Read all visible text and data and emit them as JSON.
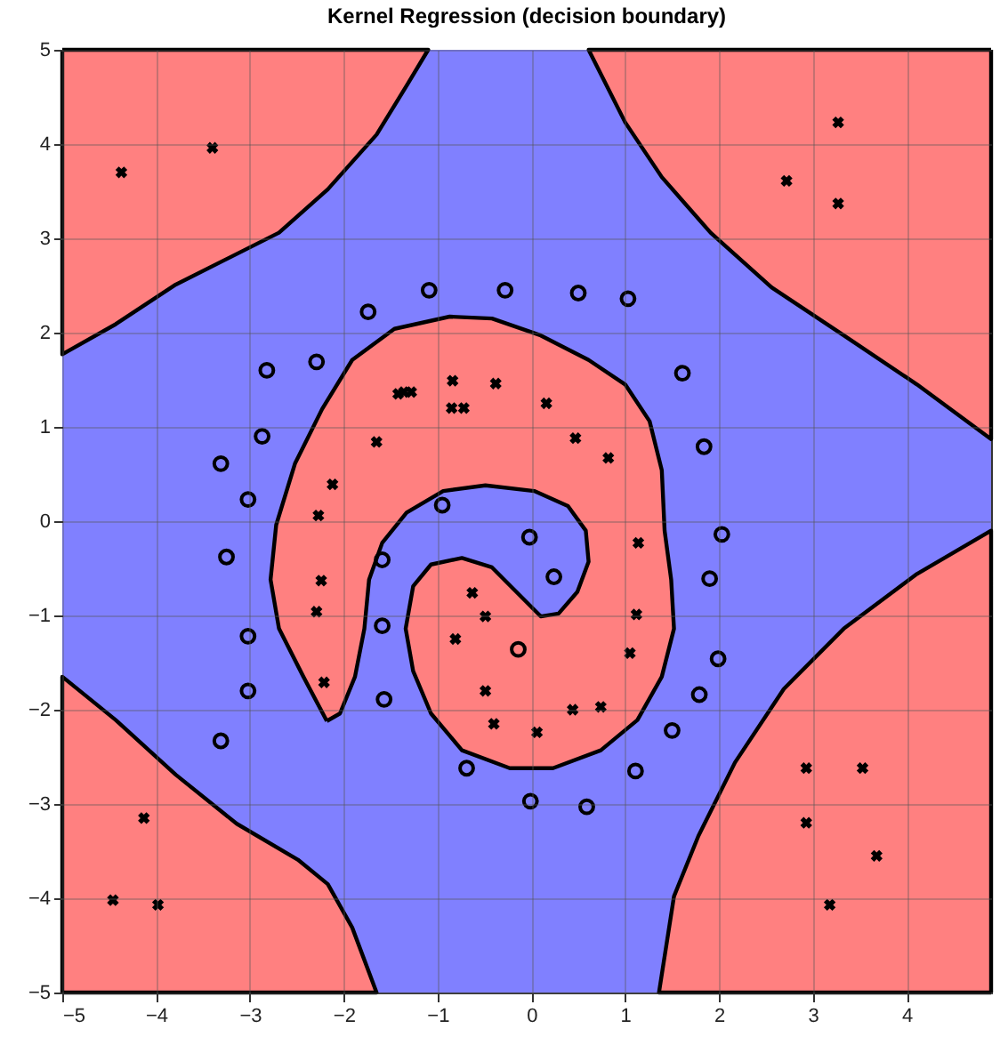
{
  "chart_data": {
    "type": "scatter",
    "title": "Kernel Regression (decision boundary)",
    "xlim": [
      -5,
      4.9
    ],
    "ylim": [
      -5,
      5
    ],
    "xticks": [
      -5,
      -4,
      -3,
      -2,
      -1,
      0,
      1,
      2,
      3,
      4
    ],
    "yticks": [
      -5,
      -4,
      -3,
      -2,
      -1,
      0,
      1,
      2,
      3,
      4,
      5
    ],
    "grid": true,
    "bands": [
      {
        "axis": "x",
        "from": -5,
        "to": 4.9,
        "color": "#8080ff"
      }
    ],
    "series": [
      {
        "type": "area",
        "color": "#ff8080",
        "x": [
          -5,
          -5,
          -4.43,
          -3.79,
          -3.27,
          -2.69,
          -2.17,
          -1.65,
          -1.33,
          -1.1
        ],
        "values": [
          5,
          1.77,
          2.09,
          2.51,
          2.77,
          3.06,
          3.52,
          4.1,
          4.62,
          5
        ]
      },
      {
        "type": "area",
        "color": "#ff8080",
        "x": [
          4.9,
          0.61,
          1.0,
          1.39,
          1.91,
          2.56,
          3.33,
          4.11,
          4.9
        ],
        "values": [
          5,
          5,
          4.23,
          3.65,
          3.06,
          2.48,
          1.97,
          1.45,
          0.87
        ]
      },
      {
        "type": "area",
        "color": "#ff8080",
        "x": [
          4.9,
          4.9,
          4.11,
          3.33,
          2.69,
          2.17,
          1.78,
          1.52,
          1.36
        ],
        "values": [
          -5,
          -0.1,
          -0.56,
          -1.14,
          -1.78,
          -2.56,
          -3.34,
          -3.98,
          -5
        ]
      },
      {
        "type": "area",
        "color": "#ff8080",
        "x": [
          -5,
          -5,
          -4.43,
          -3.79,
          -3.14,
          -2.49,
          -2.17,
          -1.91,
          -1.65
        ],
        "values": [
          -5,
          -1.65,
          -2.11,
          -2.69,
          -3.21,
          -3.59,
          -3.85,
          -4.31,
          -5
        ]
      },
      {
        "type": "area",
        "color": "#ff8080",
        "x": [
          -2.18,
          -2.43,
          -2.69,
          -2.78,
          -2.72,
          -2.52,
          -2.23,
          -1.91,
          -1.46,
          -0.87,
          -0.42,
          0.1,
          0.61,
          1.0,
          1.26,
          1.39,
          1.42,
          1.49,
          1.52,
          1.39,
          1.13,
          0.74,
          0.23,
          -0.23,
          -0.74,
          -1.07,
          -1.26,
          -1.34,
          -1.26,
          -1.07,
          -0.74,
          -0.42,
          -0.16,
          0.1,
          0.29,
          0.49,
          0.61,
          0.58,
          0.39,
          0.03,
          -0.49,
          -0.94,
          -1.33,
          -1.59,
          -1.73,
          -1.78,
          -1.88,
          -2.04
        ],
        "values": [
          -2.12,
          -1.65,
          -1.14,
          -0.62,
          -0.04,
          0.61,
          1.19,
          1.71,
          2.04,
          2.17,
          2.15,
          1.97,
          1.71,
          1.45,
          1.06,
          0.54,
          -0.1,
          -0.62,
          -1.14,
          -1.65,
          -2.11,
          -2.43,
          -2.62,
          -2.62,
          -2.43,
          -2.04,
          -1.59,
          -1.14,
          -0.69,
          -0.46,
          -0.39,
          -0.49,
          -0.75,
          -1.01,
          -0.98,
          -0.75,
          -0.43,
          -0.1,
          0.16,
          0.32,
          0.38,
          0.32,
          0.09,
          -0.23,
          -0.62,
          -1.14,
          -1.65,
          -2.04
        ]
      },
      {
        "type": "scatter",
        "marker": "cross",
        "color": "#000000",
        "x": [
          -4.37,
          -3.4,
          2.72,
          3.27,
          3.27,
          -4.13,
          -4.46,
          -3.98,
          2.93,
          3.53,
          2.93,
          3.68,
          3.18,
          -1.42,
          -1.36,
          -1.28,
          -0.84,
          -0.85,
          -0.72,
          -0.38,
          0.16,
          0.47,
          0.82,
          -1.65,
          -2.12,
          -2.27,
          -2.24,
          -2.29,
          -2.21,
          1.14,
          1.12,
          1.05,
          -0.63,
          -0.49,
          -0.81,
          -0.49,
          -0.4,
          0.06,
          0.44,
          0.74
        ],
        "values": [
          3.7,
          3.96,
          3.61,
          4.23,
          3.37,
          -3.15,
          -4.02,
          -4.07,
          -2.62,
          -2.62,
          -3.2,
          -3.55,
          -4.07,
          1.35,
          1.37,
          1.37,
          1.49,
          1.2,
          1.2,
          1.46,
          1.25,
          0.88,
          0.67,
          0.84,
          0.39,
          0.06,
          -0.63,
          -0.96,
          -1.71,
          -0.23,
          -0.99,
          -1.4,
          -0.76,
          -1.01,
          -1.25,
          -1.8,
          -2.15,
          -2.24,
          -2.0,
          -1.97
        ]
      },
      {
        "type": "scatter",
        "marker": "circle",
        "color": "#000000",
        "x": [
          -1.09,
          -0.28,
          0.5,
          1.03,
          -1.74,
          -2.29,
          -2.82,
          -2.87,
          -3.31,
          -3.02,
          -3.25,
          -3.02,
          -3.02,
          -3.31,
          1.61,
          1.84,
          2.03,
          1.9,
          1.99,
          1.79,
          1.5,
          1.11,
          0.59,
          -0.01,
          -0.69,
          -0.95,
          -0.02,
          0.24,
          -0.14,
          -1.59,
          -1.59,
          -1.57
        ],
        "values": [
          2.45,
          2.45,
          2.42,
          2.36,
          2.22,
          1.69,
          1.6,
          0.9,
          0.61,
          0.23,
          -0.38,
          -1.22,
          -1.8,
          -2.33,
          1.57,
          0.79,
          -0.14,
          -0.61,
          -1.46,
          -1.84,
          -2.22,
          -2.65,
          -3.03,
          -2.97,
          -2.62,
          0.17,
          -0.17,
          -0.59,
          -1.36,
          -0.41,
          -1.11,
          -1.89
        ]
      }
    ]
  }
}
